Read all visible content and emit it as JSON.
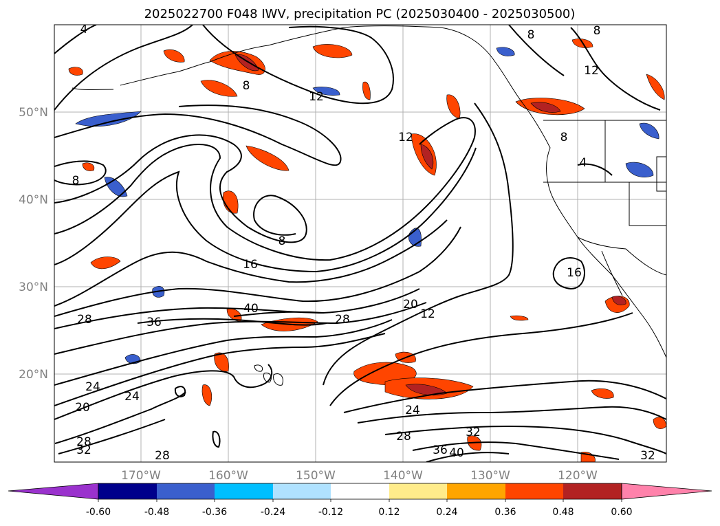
{
  "title": "2025022700 F048 IWV, precipitation PC (2025030400 - 2025030500)",
  "lat_labels": [
    "50°N",
    "40°N",
    "30°N",
    "20°N"
  ],
  "lon_labels": [
    "170°W",
    "160°W",
    "150°W",
    "140°W",
    "130°W",
    "120°W"
  ],
  "colorbar": {
    "ticks": [
      "-0.60",
      "-0.48",
      "-0.36",
      "-0.24",
      "-0.12",
      "0.12",
      "0.24",
      "0.36",
      "0.48",
      "0.60"
    ],
    "colors": [
      "#9a32cd",
      "#00008b",
      "#3a5fcd",
      "#00bfff",
      "#b0e2ff",
      "#ffffff",
      "#ffec8b",
      "#ffa500",
      "#ff4500",
      "#b22222",
      "#ff82ab"
    ]
  },
  "contour_labels": [
    "4",
    "8",
    "8",
    "12",
    "12",
    "8",
    "8",
    "12",
    "8",
    "4",
    "8",
    "16",
    "16",
    "40",
    "36",
    "28",
    "20",
    "12",
    "28",
    "24",
    "20",
    "24",
    "24",
    "28",
    "28",
    "32",
    "32",
    "36",
    "40",
    "28",
    "32"
  ]
}
